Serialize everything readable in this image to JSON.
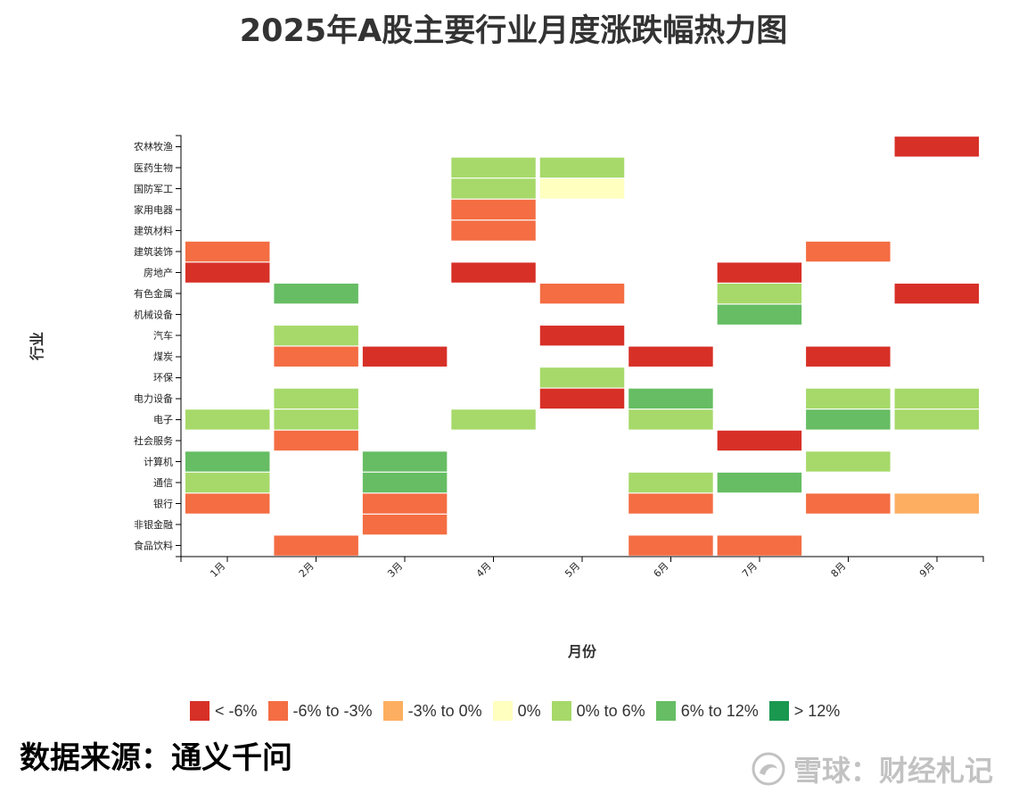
{
  "chart_data": {
    "type": "heatmap",
    "title": "2025年A股主要行业月度涨跌幅热力图",
    "xlabel": "月份",
    "ylabel": "行业",
    "x_categories": [
      "1月",
      "2月",
      "3月",
      "4月",
      "5月",
      "6月",
      "7月",
      "8月",
      "9月"
    ],
    "y_categories": [
      "农林牧渔",
      "医药生物",
      "国防军工",
      "家用电器",
      "建筑材料",
      "建筑装饰",
      "房地产",
      "有色金属",
      "机械设备",
      "汽车",
      "煤炭",
      "环保",
      "电力设备",
      "电子",
      "社会服务",
      "计算机",
      "通信",
      "银行",
      "非银金融",
      "食品饮料"
    ],
    "legend_position": "bottom",
    "grid": false,
    "legend": [
      {
        "label": "< -6%",
        "color": "#d73027"
      },
      {
        "label": "-6% to -3%",
        "color": "#f46d43"
      },
      {
        "label": "-3% to 0%",
        "color": "#fdae61"
      },
      {
        "label": "0%",
        "color": "#ffffbf"
      },
      {
        "label": "0% to 6%",
        "color": "#a6d96a"
      },
      {
        "label": "6% to 12%",
        "color": "#66bd63"
      },
      {
        "label": "> 12%",
        "color": "#1a9850"
      }
    ],
    "cells": [
      {
        "month": "1月",
        "industry": "建筑装饰",
        "range": "-6% to -3%"
      },
      {
        "month": "1月",
        "industry": "房地产",
        "range": "< -6%"
      },
      {
        "month": "1月",
        "industry": "电子",
        "range": "0% to 6%"
      },
      {
        "month": "1月",
        "industry": "计算机",
        "range": "6% to 12%"
      },
      {
        "month": "1月",
        "industry": "通信",
        "range": "0% to 6%"
      },
      {
        "month": "1月",
        "industry": "银行",
        "range": "-6% to -3%"
      },
      {
        "month": "2月",
        "industry": "有色金属",
        "range": "6% to 12%"
      },
      {
        "month": "2月",
        "industry": "汽车",
        "range": "0% to 6%"
      },
      {
        "month": "2月",
        "industry": "煤炭",
        "range": "-6% to -3%"
      },
      {
        "month": "2月",
        "industry": "电力设备",
        "range": "0% to 6%"
      },
      {
        "month": "2月",
        "industry": "电子",
        "range": "0% to 6%"
      },
      {
        "month": "2月",
        "industry": "社会服务",
        "range": "-6% to -3%"
      },
      {
        "month": "2月",
        "industry": "食品饮料",
        "range": "-6% to -3%"
      },
      {
        "month": "3月",
        "industry": "煤炭",
        "range": "< -6%"
      },
      {
        "month": "3月",
        "industry": "计算机",
        "range": "6% to 12%"
      },
      {
        "month": "3月",
        "industry": "通信",
        "range": "6% to 12%"
      },
      {
        "month": "3月",
        "industry": "银行",
        "range": "-6% to -3%"
      },
      {
        "month": "3月",
        "industry": "非银金融",
        "range": "-6% to -3%"
      },
      {
        "month": "4月",
        "industry": "医药生物",
        "range": "0% to 6%"
      },
      {
        "month": "4月",
        "industry": "国防军工",
        "range": "0% to 6%"
      },
      {
        "month": "4月",
        "industry": "家用电器",
        "range": "-6% to -3%"
      },
      {
        "month": "4月",
        "industry": "建筑材料",
        "range": "-6% to -3%"
      },
      {
        "month": "4月",
        "industry": "房地产",
        "range": "< -6%"
      },
      {
        "month": "4月",
        "industry": "电子",
        "range": "0% to 6%"
      },
      {
        "month": "5月",
        "industry": "医药生物",
        "range": "0% to 6%"
      },
      {
        "month": "5月",
        "industry": "国防军工",
        "range": "0%"
      },
      {
        "month": "5月",
        "industry": "有色金属",
        "range": "-6% to -3%"
      },
      {
        "month": "5月",
        "industry": "汽车",
        "range": "< -6%"
      },
      {
        "month": "5月",
        "industry": "环保",
        "range": "0% to 6%"
      },
      {
        "month": "5月",
        "industry": "电力设备",
        "range": "< -6%"
      },
      {
        "month": "6月",
        "industry": "煤炭",
        "range": "< -6%"
      },
      {
        "month": "6月",
        "industry": "电力设备",
        "range": "6% to 12%"
      },
      {
        "month": "6月",
        "industry": "电子",
        "range": "0% to 6%"
      },
      {
        "month": "6月",
        "industry": "通信",
        "range": "0% to 6%"
      },
      {
        "month": "6月",
        "industry": "银行",
        "range": "-6% to -3%"
      },
      {
        "month": "6月",
        "industry": "食品饮料",
        "range": "-6% to -3%"
      },
      {
        "month": "7月",
        "industry": "房地产",
        "range": "< -6%"
      },
      {
        "month": "7月",
        "industry": "有色金属",
        "range": "0% to 6%"
      },
      {
        "month": "7月",
        "industry": "机械设备",
        "range": "6% to 12%"
      },
      {
        "month": "7月",
        "industry": "社会服务",
        "range": "< -6%"
      },
      {
        "month": "7月",
        "industry": "通信",
        "range": "6% to 12%"
      },
      {
        "month": "7月",
        "industry": "食品饮料",
        "range": "-6% to -3%"
      },
      {
        "month": "8月",
        "industry": "建筑装饰",
        "range": "-6% to -3%"
      },
      {
        "month": "8月",
        "industry": "煤炭",
        "range": "< -6%"
      },
      {
        "month": "8月",
        "industry": "电力设备",
        "range": "0% to 6%"
      },
      {
        "month": "8月",
        "industry": "电子",
        "range": "6% to 12%"
      },
      {
        "month": "8月",
        "industry": "计算机",
        "range": "0% to 6%"
      },
      {
        "month": "8月",
        "industry": "银行",
        "range": "-6% to -3%"
      },
      {
        "month": "9月",
        "industry": "农林牧渔",
        "range": "< -6%"
      },
      {
        "month": "9月",
        "industry": "有色金属",
        "range": "< -6%"
      },
      {
        "month": "9月",
        "industry": "电力设备",
        "range": "0% to 6%"
      },
      {
        "month": "9月",
        "industry": "电子",
        "range": "0% to 6%"
      },
      {
        "month": "9月",
        "industry": "银行",
        "range": "-3% to 0%"
      }
    ]
  },
  "source_note": "数据来源：通义千问",
  "watermark": "雪球：财经札记"
}
